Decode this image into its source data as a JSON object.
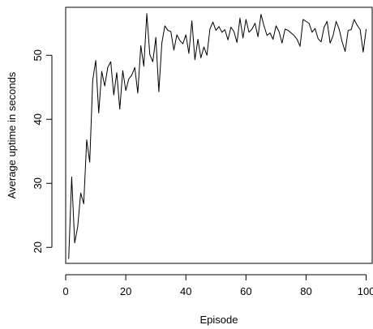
{
  "chart_data": {
    "type": "line",
    "xlabel": "Episode",
    "ylabel": "Average uptime in seconds",
    "xlim": [
      0,
      102
    ],
    "ylim": [
      17.5,
      57.5
    ],
    "xticks": [
      0,
      20,
      40,
      60,
      80,
      100
    ],
    "yticks": [
      20,
      30,
      40,
      50
    ],
    "grid": false,
    "series": [
      {
        "x": [
          1,
          2,
          3,
          4,
          5,
          6,
          7,
          8,
          9,
          10,
          11,
          12,
          13,
          14,
          15,
          16,
          17,
          18,
          19,
          20,
          21,
          22,
          23,
          24,
          25,
          26,
          27,
          28,
          29,
          30,
          31,
          32,
          33,
          34,
          35,
          36,
          37,
          38,
          39,
          40,
          41,
          42,
          43,
          44,
          45,
          46,
          47,
          48,
          49,
          50,
          51,
          52,
          53,
          54,
          55,
          56,
          57,
          58,
          59,
          60,
          61,
          62,
          63,
          64,
          65,
          66,
          67,
          68,
          69,
          70,
          71,
          72,
          73,
          74,
          75,
          76,
          77,
          78,
          79,
          80,
          81,
          82,
          83,
          84,
          85,
          86,
          87,
          88,
          89,
          90,
          91,
          92,
          93,
          94,
          95,
          96,
          97,
          98,
          99,
          100
        ],
        "y": [
          18.2,
          31.0,
          20.7,
          23.2,
          28.5,
          26.8,
          36.8,
          33.3,
          46.1,
          49.2,
          41.0,
          47.5,
          45.2,
          48.1,
          49.0,
          43.8,
          47.3,
          41.6,
          47.6,
          44.5,
          46.3,
          46.9,
          48.1,
          44.1,
          51.5,
          48.3,
          56.5,
          50.1,
          49.0,
          52.8,
          44.3,
          51.9,
          54.6,
          53.9,
          53.7,
          50.8,
          53.2,
          52.3,
          51.8,
          53.2,
          50.3,
          55.4,
          49.3,
          52.5,
          49.6,
          51.3,
          50.0,
          54.1,
          55.2,
          53.9,
          54.5,
          53.6,
          54.0,
          52.4,
          54.4,
          53.7,
          52.0,
          55.8,
          52.7,
          55.6,
          53.6,
          54.1,
          55.0,
          52.9,
          56.4,
          54.6,
          53.1,
          53.5,
          52.5,
          54.6,
          53.7,
          51.9,
          54.1,
          53.9,
          53.5,
          53.1,
          52.5,
          51.4,
          55.6,
          55.3,
          55.0,
          53.6,
          54.2,
          52.6,
          52.1,
          54.4,
          55.3,
          51.9,
          53.1,
          55.3,
          54.1,
          52.1,
          50.6,
          53.9,
          54.0,
          55.6,
          54.7,
          54.0,
          50.5,
          54.1
        ]
      }
    ]
  }
}
